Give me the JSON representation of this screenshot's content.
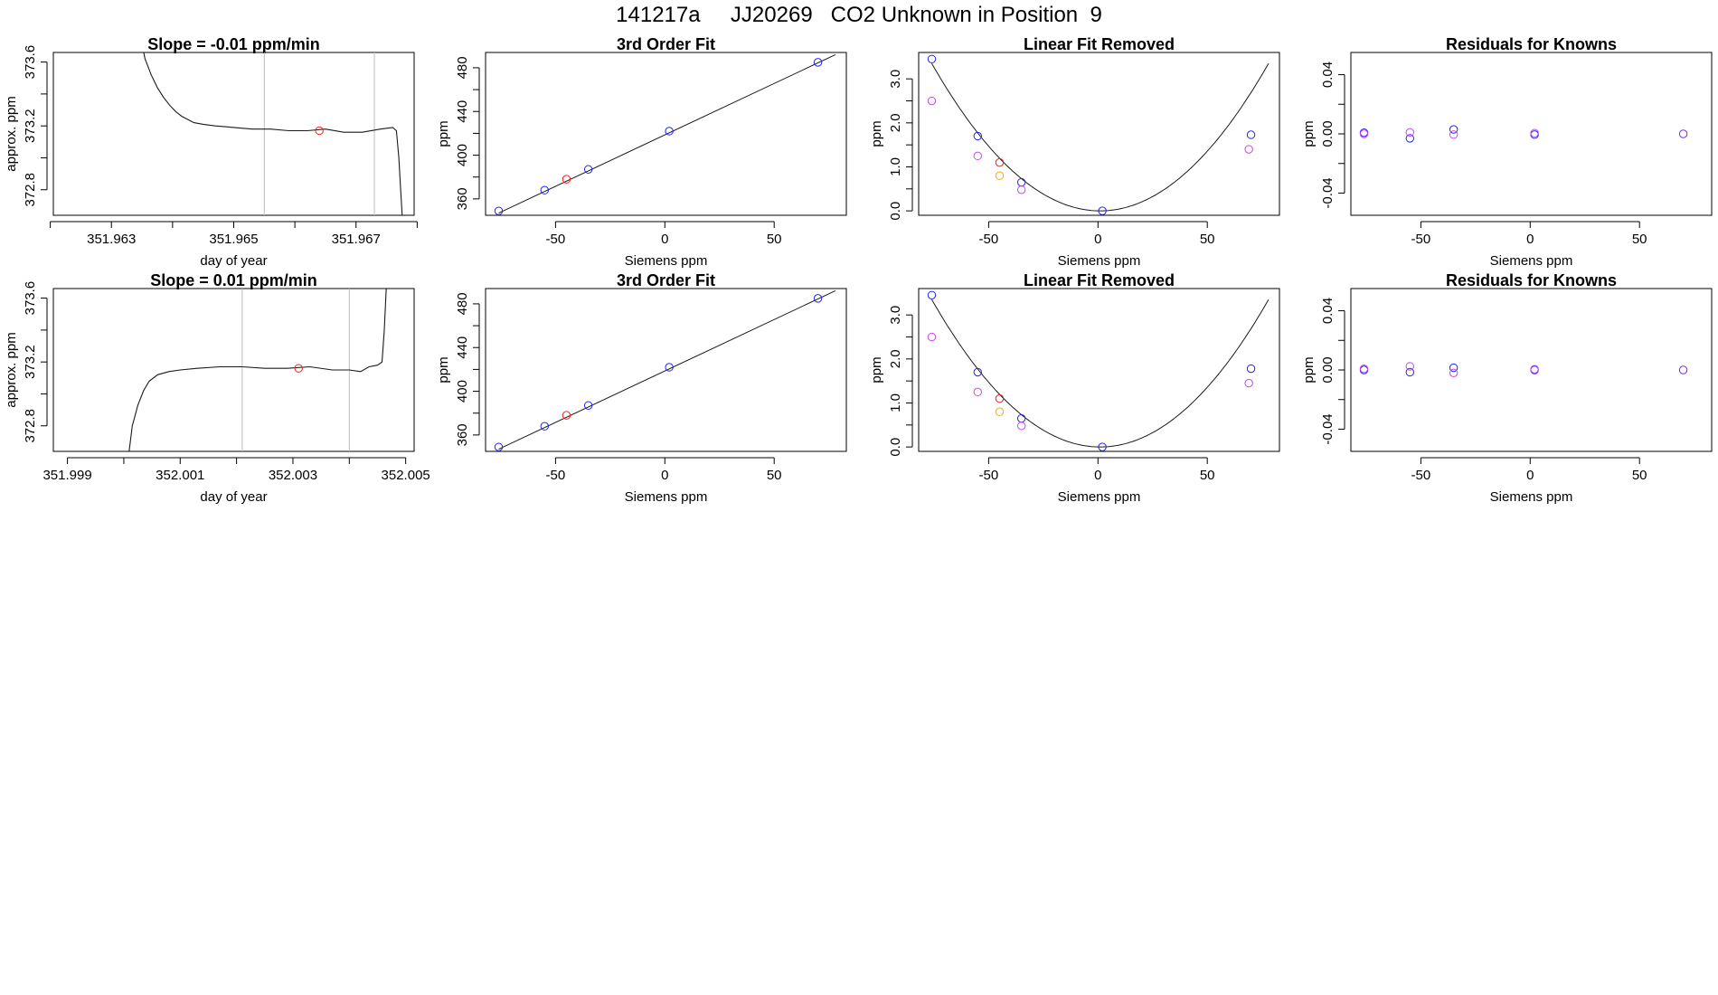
{
  "page": {
    "title": "141217a     JJ20269   CO2 Unknown in Position  9"
  },
  "colors": {
    "axis": "#000000",
    "trace": "#1a1a1a",
    "blue": "#2222ee",
    "red": "#ee2222",
    "orange": "#ffa500",
    "magenta": "#cc44ee",
    "purple": "#8822ee",
    "vline": "#bbbbbb"
  },
  "chart_data": [
    {
      "id": "r1c1",
      "row": 0,
      "col": 0,
      "type": "line",
      "title": "Slope =  -0.01  ppm/min",
      "xlabel": "day of year",
      "ylabel": "approx. ppm",
      "xlim": [
        351.96205,
        351.96795
      ],
      "ylim": [
        372.64,
        373.66
      ],
      "xticks": [
        351.962,
        351.963,
        351.964,
        351.965,
        351.966,
        351.967,
        351.968
      ],
      "xticklabels": [
        "",
        "351.963",
        "",
        "351.965",
        "",
        "351.967",
        ""
      ],
      "yticks": [
        372.8,
        373.0,
        373.2,
        373.4,
        373.6
      ],
      "yticklabels": [
        "372.8",
        "",
        "373.2",
        "",
        "373.6"
      ],
      "vlines": [
        351.9655,
        351.9673
      ],
      "marker": {
        "x": 351.9664,
        "y": 373.17
      },
      "trace_points": [
        [
          351.96348,
          373.75
        ],
        [
          351.96355,
          373.62
        ],
        [
          351.96365,
          373.52
        ],
        [
          351.96375,
          373.44
        ],
        [
          351.96385,
          373.38
        ],
        [
          351.96395,
          373.33
        ],
        [
          351.96405,
          373.29
        ],
        [
          351.96415,
          373.26
        ],
        [
          351.96425,
          373.24
        ],
        [
          351.96435,
          373.22
        ],
        [
          351.9645,
          373.21
        ],
        [
          351.9647,
          373.2
        ],
        [
          351.965,
          373.19
        ],
        [
          351.9653,
          373.18
        ],
        [
          351.9656,
          373.18
        ],
        [
          351.9659,
          373.17
        ],
        [
          351.9662,
          373.17
        ],
        [
          351.9665,
          373.18
        ],
        [
          351.9668,
          373.16
        ],
        [
          351.9671,
          373.16
        ],
        [
          351.9674,
          373.18
        ],
        [
          351.9676,
          373.19
        ],
        [
          351.96766,
          373.17
        ],
        [
          351.9677,
          373.0
        ],
        [
          351.96773,
          372.8
        ],
        [
          351.96776,
          372.6
        ]
      ]
    },
    {
      "id": "r1c2",
      "row": 0,
      "col": 1,
      "type": "scatter",
      "title": "3rd Order Fit",
      "xlabel": "Siemens ppm",
      "ylabel": "ppm",
      "xlim": [
        -82,
        83
      ],
      "ylim": [
        345,
        494
      ],
      "xticks": [
        -50,
        0,
        50
      ],
      "xticklabels": [
        "-50",
        "0",
        "50"
      ],
      "yticks": [
        360,
        380,
        400,
        420,
        440,
        460,
        480
      ],
      "yticklabels": [
        "360",
        "",
        "400",
        "",
        "440",
        "",
        "480"
      ],
      "fit_line": [
        [
          -76,
          347
        ],
        [
          78,
          492
        ]
      ],
      "points": [
        {
          "x": -76,
          "y": 349,
          "color": "blue"
        },
        {
          "x": -55,
          "y": 368,
          "color": "blue"
        },
        {
          "x": -45,
          "y": 378,
          "color": "red"
        },
        {
          "x": -35,
          "y": 387,
          "color": "blue"
        },
        {
          "x": 2,
          "y": 422,
          "color": "blue"
        },
        {
          "x": 70,
          "y": 485,
          "color": "blue"
        }
      ]
    },
    {
      "id": "r1c3",
      "row": 0,
      "col": 2,
      "type": "scatter",
      "title": "Linear Fit Removed",
      "xlabel": "Siemens ppm",
      "ylabel": "ppm",
      "xlim": [
        -82,
        83
      ],
      "ylim": [
        -0.1,
        3.6
      ],
      "xticks": [
        -50,
        0,
        50
      ],
      "xticklabels": [
        "-50",
        "0",
        "50"
      ],
      "yticks": [
        0.0,
        0.5,
        1.0,
        1.5,
        2.0,
        2.5,
        3.0
      ],
      "yticklabels": [
        "0.0",
        "",
        "1.0",
        "",
        "2.0",
        "",
        "3.0"
      ],
      "curve": {
        "vertex_x": 1,
        "coef": 0.000565,
        "from": -76,
        "to": 78
      },
      "points": [
        {
          "x": -76,
          "y": 3.45,
          "color": "blue"
        },
        {
          "x": -76,
          "y": 2.5,
          "color": "magenta"
        },
        {
          "x": -55,
          "y": 1.7,
          "color": "blue"
        },
        {
          "x": -55,
          "y": 1.25,
          "color": "magenta"
        },
        {
          "x": -45,
          "y": 1.1,
          "color": "red"
        },
        {
          "x": -45,
          "y": 0.8,
          "color": "orange"
        },
        {
          "x": -35,
          "y": 0.65,
          "color": "blue"
        },
        {
          "x": -35,
          "y": 0.48,
          "color": "magenta"
        },
        {
          "x": 2,
          "y": 0.0,
          "color": "blue"
        },
        {
          "x": 70,
          "y": 1.73,
          "color": "blue"
        },
        {
          "x": 69,
          "y": 1.4,
          "color": "magenta"
        }
      ]
    },
    {
      "id": "r1c4",
      "row": 0,
      "col": 3,
      "type": "scatter",
      "title": "Residuals for Knowns",
      "xlabel": "Siemens ppm",
      "ylabel": "ppm",
      "xlim": [
        -82,
        83
      ],
      "ylim": [
        -0.055,
        0.055
      ],
      "xticks": [
        -50,
        0,
        50
      ],
      "xticklabels": [
        "-50",
        "0",
        "50"
      ],
      "yticks": [
        -0.04,
        -0.02,
        0.0,
        0.02,
        0.04
      ],
      "yticklabels": [
        "-0.04",
        "",
        "0.00",
        "",
        "0.04"
      ],
      "points": [
        {
          "x": -76,
          "y": 0.0008,
          "color": "blue"
        },
        {
          "x": -76,
          "y": 0.0,
          "color": "magenta"
        },
        {
          "x": -55,
          "y": -0.003,
          "color": "blue"
        },
        {
          "x": -55,
          "y": 0.001,
          "color": "magenta"
        },
        {
          "x": -35,
          "y": 0.003,
          "color": "blue"
        },
        {
          "x": -35,
          "y": -0.0005,
          "color": "magenta"
        },
        {
          "x": 2,
          "y": -0.0005,
          "color": "blue"
        },
        {
          "x": 2,
          "y": 0.0005,
          "color": "magenta"
        },
        {
          "x": 70,
          "y": 0.0,
          "color": "purple"
        }
      ]
    },
    {
      "id": "r2c1",
      "row": 1,
      "col": 0,
      "type": "line",
      "title": "Slope =  0.01  ppm/min",
      "xlabel": "day of year",
      "ylabel": "approx. ppm",
      "xlim": [
        351.99875,
        352.00515
      ],
      "ylim": [
        372.64,
        373.66
      ],
      "xticks": [
        351.999,
        352.0,
        352.001,
        352.002,
        352.003,
        352.004,
        352.005
      ],
      "xticklabels": [
        "351.999",
        "",
        "352.001",
        "",
        "352.003",
        "",
        "352.005"
      ],
      "yticks": [
        372.8,
        373.0,
        373.2,
        373.4,
        373.6
      ],
      "yticklabels": [
        "372.8",
        "",
        "373.2",
        "",
        "373.6"
      ],
      "vlines": [
        352.0021,
        352.004
      ],
      "marker": {
        "x": 352.0031,
        "y": 373.16
      },
      "trace_points": [
        [
          352.00008,
          372.6
        ],
        [
          352.00015,
          372.8
        ],
        [
          352.00025,
          372.93
        ],
        [
          352.00035,
          373.02
        ],
        [
          352.00045,
          373.08
        ],
        [
          352.0006,
          373.12
        ],
        [
          352.0008,
          373.14
        ],
        [
          352.001,
          373.15
        ],
        [
          352.0013,
          373.16
        ],
        [
          352.0017,
          373.17
        ],
        [
          352.0021,
          373.17
        ],
        [
          352.0025,
          373.16
        ],
        [
          352.0029,
          373.16
        ],
        [
          352.0033,
          373.17
        ],
        [
          352.0037,
          373.15
        ],
        [
          352.004,
          373.15
        ],
        [
          352.0042,
          373.14
        ],
        [
          352.00435,
          373.17
        ],
        [
          352.0045,
          373.18
        ],
        [
          352.00458,
          373.2
        ],
        [
          352.00462,
          373.4
        ],
        [
          352.00466,
          373.7
        ]
      ]
    },
    {
      "id": "r2c2",
      "row": 1,
      "col": 1,
      "type": "scatter",
      "title": "3rd Order Fit",
      "xlabel": "Siemens ppm",
      "ylabel": "ppm",
      "xlim": [
        -82,
        83
      ],
      "ylim": [
        345,
        494
      ],
      "xticks": [
        -50,
        0,
        50
      ],
      "xticklabels": [
        "-50",
        "0",
        "50"
      ],
      "yticks": [
        360,
        380,
        400,
        420,
        440,
        460,
        480
      ],
      "yticklabels": [
        "360",
        "",
        "400",
        "",
        "440",
        "",
        "480"
      ],
      "fit_line": [
        [
          -76,
          347
        ],
        [
          78,
          492
        ]
      ],
      "points": [
        {
          "x": -76,
          "y": 349,
          "color": "blue"
        },
        {
          "x": -55,
          "y": 368,
          "color": "blue"
        },
        {
          "x": -45,
          "y": 378,
          "color": "red"
        },
        {
          "x": -35,
          "y": 387,
          "color": "blue"
        },
        {
          "x": 2,
          "y": 422,
          "color": "blue"
        },
        {
          "x": 70,
          "y": 485,
          "color": "blue"
        }
      ]
    },
    {
      "id": "r2c3",
      "row": 1,
      "col": 2,
      "type": "scatter",
      "title": "Linear Fit Removed",
      "xlabel": "Siemens ppm",
      "ylabel": "ppm",
      "xlim": [
        -82,
        83
      ],
      "ylim": [
        -0.1,
        3.6
      ],
      "xticks": [
        -50,
        0,
        50
      ],
      "xticklabels": [
        "-50",
        "0",
        "50"
      ],
      "yticks": [
        0.0,
        0.5,
        1.0,
        1.5,
        2.0,
        2.5,
        3.0
      ],
      "yticklabels": [
        "0.0",
        "",
        "1.0",
        "",
        "2.0",
        "",
        "3.0"
      ],
      "curve": {
        "vertex_x": 1,
        "coef": 0.000565,
        "from": -76,
        "to": 78
      },
      "points": [
        {
          "x": -76,
          "y": 3.45,
          "color": "blue"
        },
        {
          "x": -76,
          "y": 2.5,
          "color": "magenta"
        },
        {
          "x": -55,
          "y": 1.7,
          "color": "blue"
        },
        {
          "x": -55,
          "y": 1.25,
          "color": "magenta"
        },
        {
          "x": -45,
          "y": 1.1,
          "color": "red"
        },
        {
          "x": -45,
          "y": 0.8,
          "color": "orange"
        },
        {
          "x": -35,
          "y": 0.65,
          "color": "blue"
        },
        {
          "x": -35,
          "y": 0.48,
          "color": "magenta"
        },
        {
          "x": 2,
          "y": 0.0,
          "color": "blue"
        },
        {
          "x": 70,
          "y": 1.78,
          "color": "blue"
        },
        {
          "x": 69,
          "y": 1.45,
          "color": "magenta"
        }
      ]
    },
    {
      "id": "r2c4",
      "row": 1,
      "col": 3,
      "type": "scatter",
      "title": "Residuals for Knowns",
      "xlabel": "Siemens ppm",
      "ylabel": "ppm",
      "xlim": [
        -82,
        83
      ],
      "ylim": [
        -0.055,
        0.055
      ],
      "xticks": [
        -50,
        0,
        50
      ],
      "xticklabels": [
        "-50",
        "0",
        "50"
      ],
      "yticks": [
        -0.04,
        -0.02,
        0.0,
        0.02,
        0.04
      ],
      "yticklabels": [
        "-0.04",
        "",
        "0.00",
        "",
        "0.04"
      ],
      "points": [
        {
          "x": -76,
          "y": 0.0,
          "color": "blue"
        },
        {
          "x": -76,
          "y": 0.0008,
          "color": "magenta"
        },
        {
          "x": -55,
          "y": -0.0015,
          "color": "blue"
        },
        {
          "x": -55,
          "y": 0.0025,
          "color": "magenta"
        },
        {
          "x": -35,
          "y": 0.0015,
          "color": "blue"
        },
        {
          "x": -35,
          "y": -0.002,
          "color": "magenta"
        },
        {
          "x": 2,
          "y": 0.0,
          "color": "blue"
        },
        {
          "x": 2,
          "y": 0.0005,
          "color": "magenta"
        },
        {
          "x": 70,
          "y": 0.0,
          "color": "purple"
        }
      ]
    }
  ]
}
